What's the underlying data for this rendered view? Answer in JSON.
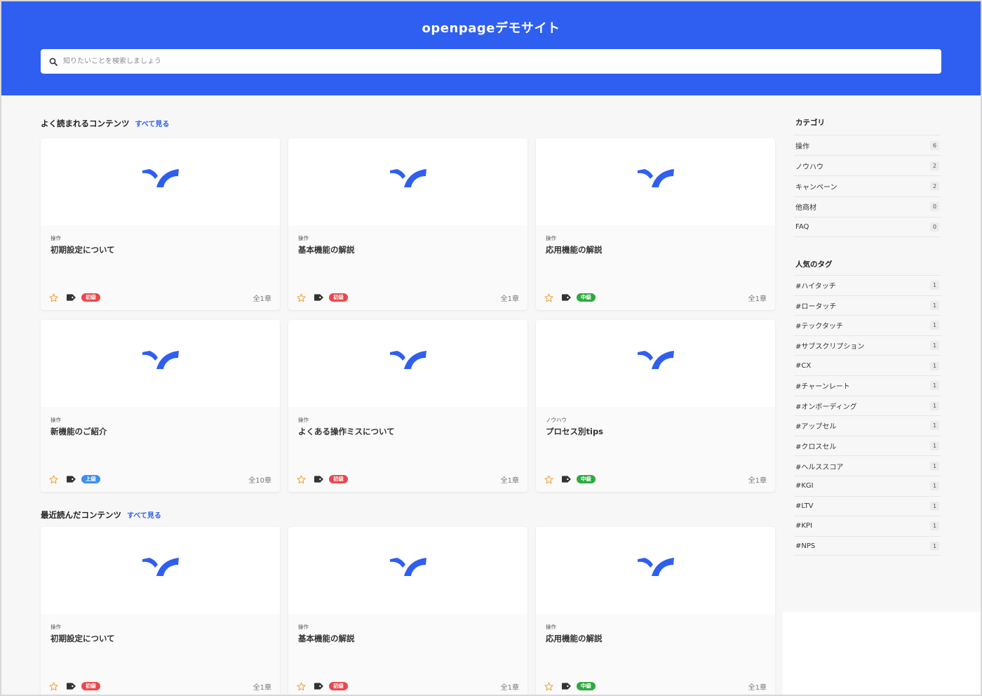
{
  "header": {
    "title": "openpageデモサイト",
    "search_placeholder": "知りたいことを検索しましょう"
  },
  "colors": {
    "brand": "#2f5ff0",
    "beginner": "#e9474c",
    "intermediate": "#2eaa3f",
    "advanced": "#3d8ff0",
    "star": "#f0a030"
  },
  "popular": {
    "title": "よく読まれるコンテンツ",
    "see_all": "すべて見る",
    "cards": [
      {
        "category": "操作",
        "title": "初期設定について",
        "level": "初級",
        "level_type": "beginner",
        "chapters": "全1章"
      },
      {
        "category": "操作",
        "title": "基本機能の解説",
        "level": "初級",
        "level_type": "beginner",
        "chapters": "全1章"
      },
      {
        "category": "操作",
        "title": "応用機能の解説",
        "level": "中級",
        "level_type": "intermediate",
        "chapters": "全1章"
      },
      {
        "category": "操作",
        "title": "新機能のご紹介",
        "level": "上級",
        "level_type": "advanced",
        "chapters": "全10章"
      },
      {
        "category": "操作",
        "title": "よくある操作ミスについて",
        "level": "初級",
        "level_type": "beginner",
        "chapters": "全1章"
      },
      {
        "category": "ノウハウ",
        "title": "プロセス別tips",
        "level": "中級",
        "level_type": "intermediate",
        "chapters": "全1章"
      }
    ]
  },
  "recent": {
    "title": "最近読んだコンテンツ",
    "see_all": "すべて見る",
    "cards": [
      {
        "category": "操作",
        "title": "初期設定について",
        "level": "初級",
        "level_type": "beginner",
        "chapters": "全1章"
      },
      {
        "category": "操作",
        "title": "基本機能の解説",
        "level": "初級",
        "level_type": "beginner",
        "chapters": "全1章"
      },
      {
        "category": "操作",
        "title": "応用機能の解説",
        "level": "中級",
        "level_type": "intermediate",
        "chapters": "全1章"
      }
    ]
  },
  "sidebar": {
    "categories_title": "カテゴリ",
    "categories": [
      {
        "label": "操作",
        "count": "6"
      },
      {
        "label": "ノウハウ",
        "count": "2"
      },
      {
        "label": "キャンペーン",
        "count": "2"
      },
      {
        "label": "他商材",
        "count": "0"
      },
      {
        "label": "FAQ",
        "count": "0"
      }
    ],
    "tags_title": "人気のタグ",
    "tags": [
      {
        "label": "#ハイタッチ",
        "count": "1"
      },
      {
        "label": "#ロータッチ",
        "count": "1"
      },
      {
        "label": "#テックタッチ",
        "count": "1"
      },
      {
        "label": "#サブスクリプション",
        "count": "1"
      },
      {
        "label": "#CX",
        "count": "1"
      },
      {
        "label": "#チャーンレート",
        "count": "1"
      },
      {
        "label": "#オンボーディング",
        "count": "1"
      },
      {
        "label": "#アップセル",
        "count": "1"
      },
      {
        "label": "#クロスセル",
        "count": "1"
      },
      {
        "label": "#ヘルススコア",
        "count": "1"
      },
      {
        "label": "#KGI",
        "count": "1"
      },
      {
        "label": "#LTV",
        "count": "1"
      },
      {
        "label": "#KPI",
        "count": "1"
      },
      {
        "label": "#NPS",
        "count": "1"
      }
    ]
  }
}
